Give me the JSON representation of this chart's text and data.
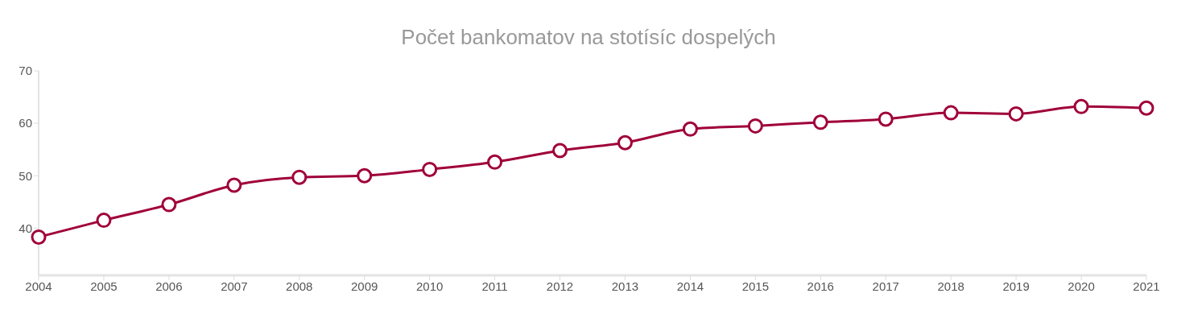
{
  "chart_data": {
    "type": "line",
    "title": "Počet bankomatov na stotísíc dospelých",
    "categories": [
      "2004",
      "2005",
      "2006",
      "2007",
      "2008",
      "2009",
      "2010",
      "2011",
      "2012",
      "2013",
      "2014",
      "2015",
      "2016",
      "2017",
      "2018",
      "2019",
      "2020",
      "2021"
    ],
    "series": [
      {
        "color": "#a0003a",
        "values": [
          38.3,
          41.5,
          44.5,
          48.2,
          49.7,
          50.0,
          51.2,
          52.6,
          54.8,
          56.3,
          58.9,
          59.5,
          60.2,
          60.8,
          62.0,
          61.8,
          63.2,
          62.9
        ]
      }
    ],
    "ylim": [
      31,
      70
    ],
    "yticks": [
      40,
      50,
      60,
      70
    ],
    "grid": false,
    "legend": false,
    "marker": "circle",
    "line_style": "solid"
  }
}
